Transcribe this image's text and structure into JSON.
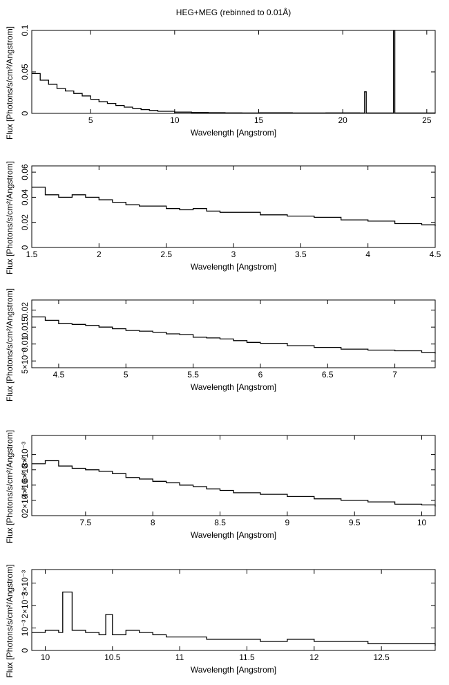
{
  "chart_data": {
    "type": "line",
    "title": "HEG+MEG (rebinned to 0.01Å)",
    "panels": [
      {
        "xlabel": "Wavelength [Angstrom]",
        "ylabel": "Flux [Photons/s/cm²/Angstrom]",
        "xlim": [
          1.5,
          25.5
        ],
        "ylim": [
          0,
          0.1
        ],
        "xticks": [
          5,
          10,
          15,
          20,
          25
        ],
        "xtick_labels": [
          "5",
          "10",
          "15",
          "20",
          "25"
        ],
        "yticks": [
          0,
          0.05,
          0.1
        ],
        "ytick_labels": [
          "0",
          "0.05",
          "0.1"
        ],
        "series": [
          {
            "x": [
              1.5,
              2,
              2.5,
              3,
              3.5,
              4,
              4.5,
              5,
              5.5,
              6,
              6.5,
              7,
              7.5,
              8,
              8.5,
              9,
              10,
              11,
              12,
              13,
              14,
              15,
              17,
              19,
              21,
              21.3,
              21.4,
              23,
              23.02,
              23.1,
              25.5
            ],
            "values": [
              0.048,
              0.04,
              0.035,
              0.03,
              0.027,
              0.024,
              0.021,
              0.017,
              0.014,
              0.012,
              0.0095,
              0.0075,
              0.006,
              0.0045,
              0.0035,
              0.0025,
              0.0015,
              0.001,
              0.0008,
              0.0006,
              0.0005,
              0.0007,
              0.0005,
              0.0006,
              0.0005,
              0.026,
              0.0005,
              0.0005,
              0.1,
              0.0005,
              0.0004
            ]
          }
        ]
      },
      {
        "xlabel": "Wavelength [Angstrom]",
        "ylabel": "Flux [Photons/s/cm²/Angstrom]",
        "xlim": [
          1.5,
          4.5
        ],
        "ylim": [
          0,
          0.065
        ],
        "xticks": [
          1.5,
          2,
          2.5,
          3,
          3.5,
          4,
          4.5
        ],
        "xtick_labels": [
          "1.5",
          "2",
          "2.5",
          "3",
          "3.5",
          "4",
          "4.5"
        ],
        "yticks": [
          0,
          0.02,
          0.04,
          0.06
        ],
        "ytick_labels": [
          "0",
          "0.02",
          "0.04",
          "0.06"
        ],
        "series": [
          {
            "x": [
              1.5,
              1.6,
              1.7,
              1.8,
              1.9,
              2.0,
              2.1,
              2.2,
              2.3,
              2.4,
              2.5,
              2.6,
              2.7,
              2.8,
              2.9,
              3.0,
              3.2,
              3.4,
              3.6,
              3.8,
              4.0,
              4.2,
              4.4,
              4.5
            ],
            "values": [
              0.048,
              0.042,
              0.04,
              0.042,
              0.04,
              0.038,
              0.036,
              0.034,
              0.033,
              0.033,
              0.031,
              0.03,
              0.031,
              0.029,
              0.028,
              0.028,
              0.026,
              0.025,
              0.024,
              0.022,
              0.021,
              0.019,
              0.018,
              0.017
            ]
          }
        ]
      },
      {
        "xlabel": "Wavelength [Angstrom]",
        "ylabel": "Flux [Photons/s/cm²/Angstrom]",
        "xlim": [
          4.3,
          7.3
        ],
        "ylim": [
          0.003,
          0.023
        ],
        "xticks": [
          4.5,
          5,
          5.5,
          6,
          6.5,
          7
        ],
        "xtick_labels": [
          "4.5",
          "5",
          "5.5",
          "6",
          "6.5",
          "7"
        ],
        "yticks": [
          0.005,
          0.01,
          0.015,
          0.02
        ],
        "ytick_labels": [
          "5×10⁻³",
          "0.01",
          "0.015",
          "0.02"
        ],
        "series": [
          {
            "x": [
              4.3,
              4.4,
              4.5,
              4.6,
              4.7,
              4.8,
              4.9,
              5.0,
              5.1,
              5.2,
              5.3,
              5.4,
              5.5,
              5.6,
              5.7,
              5.8,
              5.9,
              6.0,
              6.2,
              6.4,
              6.6,
              6.8,
              7.0,
              7.2,
              7.3
            ],
            "values": [
              0.018,
              0.017,
              0.016,
              0.0158,
              0.0155,
              0.015,
              0.0145,
              0.014,
              0.0138,
              0.0135,
              0.013,
              0.0128,
              0.012,
              0.0118,
              0.0115,
              0.011,
              0.0105,
              0.0102,
              0.0095,
              0.009,
              0.0085,
              0.0082,
              0.008,
              0.0075,
              0.0072
            ]
          }
        ]
      },
      {
        "xlabel": "Wavelength [Angstrom]",
        "ylabel": "Flux [Photons/s/cm²/Angstrom]",
        "xlim": [
          7.1,
          10.1
        ],
        "ylim": [
          0,
          0.0105
        ],
        "xticks": [
          7.5,
          8,
          8.5,
          9,
          9.5,
          10
        ],
        "xtick_labels": [
          "7.5",
          "8",
          "8.5",
          "9",
          "9.5",
          "10"
        ],
        "yticks": [
          0,
          0.002,
          0.004,
          0.006,
          0.008
        ],
        "ytick_labels": [
          "0",
          "2×10⁻³",
          "4×10⁻³",
          "6×10⁻³",
          "8×10⁻³"
        ],
        "series": [
          {
            "x": [
              7.1,
              7.2,
              7.3,
              7.4,
              7.5,
              7.6,
              7.7,
              7.8,
              7.9,
              8.0,
              8.1,
              8.2,
              8.3,
              8.4,
              8.5,
              8.6,
              8.8,
              9.0,
              9.2,
              9.4,
              9.6,
              9.8,
              10.0,
              10.1
            ],
            "values": [
              0.0068,
              0.0072,
              0.0065,
              0.0062,
              0.006,
              0.0058,
              0.0055,
              0.005,
              0.0048,
              0.0045,
              0.0043,
              0.004,
              0.0038,
              0.0035,
              0.0033,
              0.003,
              0.0028,
              0.0025,
              0.0022,
              0.002,
              0.0018,
              0.0015,
              0.0014,
              0.0012
            ]
          }
        ]
      },
      {
        "xlabel": "Wavelength [Angstrom]",
        "ylabel": "Flux [Photons/s/cm²/Angstrom]",
        "xlim": [
          9.9,
          12.9
        ],
        "ylim": [
          0,
          0.0036
        ],
        "xticks": [
          10,
          10.5,
          11,
          11.5,
          12,
          12.5
        ],
        "xtick_labels": [
          "10",
          "10.5",
          "11",
          "11.5",
          "12",
          "12.5"
        ],
        "yticks": [
          0,
          0.001,
          0.002,
          0.003
        ],
        "ytick_labels": [
          "0",
          "10⁻³",
          "2×10⁻³",
          "3×10⁻³"
        ],
        "series": [
          {
            "x": [
              9.9,
              10.0,
              10.1,
              10.13,
              10.2,
              10.3,
              10.4,
              10.45,
              10.5,
              10.6,
              10.7,
              10.8,
              10.9,
              11.0,
              11.2,
              11.4,
              11.6,
              11.8,
              12.0,
              12.2,
              12.4,
              12.6,
              12.9
            ],
            "values": [
              0.0008,
              0.0009,
              0.0008,
              0.0026,
              0.0009,
              0.0008,
              0.0007,
              0.0016,
              0.0007,
              0.0009,
              0.0008,
              0.0007,
              0.0006,
              0.0006,
              0.0005,
              0.0005,
              0.0004,
              0.0005,
              0.0004,
              0.0004,
              0.0003,
              0.0003,
              0.0002
            ]
          }
        ]
      }
    ]
  }
}
